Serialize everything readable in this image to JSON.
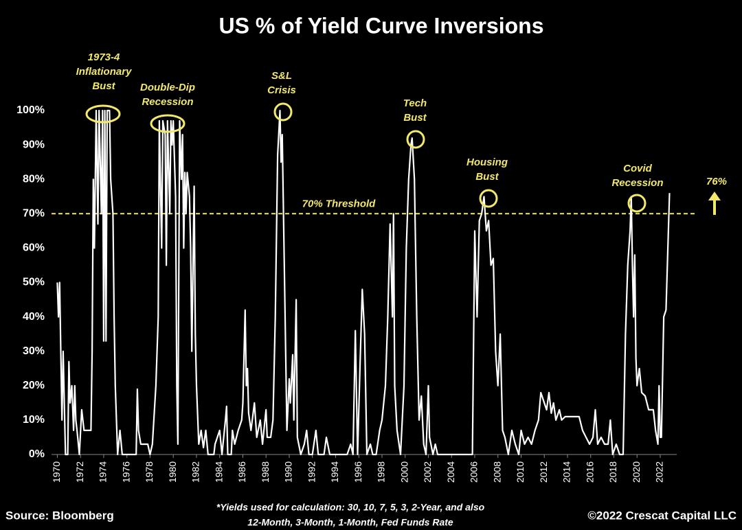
{
  "chart_data": {
    "type": "line",
    "title": "US % of Yield Curve Inversions",
    "color": "#ffffff",
    "x": [
      1970.0,
      1970.1,
      1970.2,
      1970.3,
      1970.4,
      1970.5,
      1970.7,
      1970.9,
      1971.0,
      1971.1,
      1971.25,
      1971.4,
      1971.5,
      1971.6,
      1971.7,
      1971.9,
      1972.1,
      1972.3,
      1972.6,
      1972.9,
      1973.0,
      1973.1,
      1973.2,
      1973.35,
      1973.5,
      1973.6,
      1973.8,
      1973.9,
      1974.0,
      1974.1,
      1974.2,
      1974.3,
      1974.5,
      1974.6,
      1974.8,
      1974.9,
      1975.0,
      1975.2,
      1975.4,
      1975.6,
      1976.8,
      1976.9,
      1977.0,
      1977.2,
      1977.5,
      1977.8,
      1978.0,
      1978.2,
      1978.5,
      1978.7,
      1978.8,
      1979.0,
      1979.1,
      1979.3,
      1979.4,
      1979.5,
      1979.7,
      1979.8,
      1979.9,
      1980.0,
      1980.2,
      1980.3,
      1980.4,
      1980.55,
      1980.7,
      1980.8,
      1980.9,
      1981.0,
      1981.1,
      1981.2,
      1981.4,
      1981.5,
      1981.6,
      1981.8,
      1981.9,
      1982.0,
      1982.2,
      1982.4,
      1982.6,
      1982.8,
      1983.0,
      1983.5,
      1983.6,
      1984.0,
      1984.2,
      1984.5,
      1984.6,
      1984.7,
      1985.0,
      1985.1,
      1985.3,
      1985.6,
      1985.9,
      1986.0,
      1986.2,
      1986.3,
      1986.4,
      1986.5,
      1986.7,
      1987.0,
      1987.2,
      1987.5,
      1987.7,
      1988.0,
      1988.1,
      1988.4,
      1988.6,
      1988.8,
      1989.0,
      1989.2,
      1989.3,
      1989.4,
      1989.6,
      1989.8,
      1990.0,
      1990.1,
      1990.3,
      1990.4,
      1990.6,
      1990.7,
      1991.0,
      1991.3,
      1991.5,
      1991.7,
      1992.0,
      1992.3,
      1992.5,
      1993.0,
      1993.2,
      1993.5,
      1994.0,
      1994.5,
      1995.0,
      1995.3,
      1995.5,
      1995.7,
      1995.9,
      1996.1,
      1996.3,
      1996.5,
      1996.7,
      1997.0,
      1997.2,
      1997.5,
      1997.8,
      1998.0,
      1998.3,
      1998.5,
      1998.7,
      1998.9,
      1999.0,
      1999.1,
      1999.3,
      1999.6,
      1999.9,
      2000.1,
      2000.3,
      2000.5,
      2000.6,
      2000.8,
      2001.0,
      2001.2,
      2001.4,
      2001.6,
      2001.8,
      2002.0,
      2002.1,
      2002.4,
      2002.6,
      2002.8,
      2003.5,
      2004.0,
      2005.0,
      2005.8,
      2006.0,
      2006.2,
      2006.4,
      2006.6,
      2006.8,
      2007.0,
      2007.2,
      2007.4,
      2007.6,
      2007.8,
      2008.0,
      2008.2,
      2008.4,
      2008.6,
      2008.9,
      2009.2,
      2009.5,
      2009.8,
      2010.0,
      2010.3,
      2010.6,
      2010.9,
      2011.2,
      2011.5,
      2011.7,
      2012.0,
      2012.2,
      2012.4,
      2012.6,
      2012.8,
      2013.0,
      2013.3,
      2013.5,
      2013.8,
      2014.5,
      2015.0,
      2015.3,
      2015.6,
      2015.9,
      2016.2,
      2016.4,
      2016.6,
      2016.9,
      2017.2,
      2017.5,
      2017.7,
      2017.9,
      2018.2,
      2018.5,
      2018.8,
      2019.0,
      2019.2,
      2019.4,
      2019.5,
      2019.6,
      2019.7,
      2019.8,
      2019.9,
      2020.0,
      2020.2,
      2020.4,
      2020.7,
      2021.0,
      2021.4,
      2021.6,
      2021.8,
      2021.9,
      2022.0,
      2022.1,
      2022.3,
      2022.5,
      2022.8
    ],
    "values": [
      50,
      40,
      50,
      30,
      10,
      30,
      0,
      0,
      27,
      15,
      20,
      7,
      20,
      10,
      7,
      0,
      13,
      7,
      7,
      7,
      30,
      80,
      60,
      100,
      67,
      100,
      70,
      100,
      33,
      100,
      33,
      100,
      100,
      80,
      70,
      40,
      20,
      0,
      7,
      0,
      0,
      19,
      7,
      3,
      3,
      3,
      0,
      3,
      20,
      40,
      97,
      60,
      97,
      93,
      55,
      97,
      70,
      97,
      90,
      97,
      75,
      20,
      3,
      97,
      80,
      93,
      60,
      82,
      70,
      82,
      75,
      60,
      30,
      78,
      35,
      20,
      3,
      7,
      2,
      7,
      0,
      0,
      3,
      7,
      0,
      10,
      14,
      0,
      0,
      7,
      3,
      7,
      10,
      15,
      42,
      20,
      25,
      12,
      7,
      15,
      5,
      10,
      3,
      13,
      5,
      5,
      10,
      40,
      87,
      100,
      85,
      93,
      50,
      7,
      22,
      15,
      29,
      10,
      45,
      5,
      0,
      3,
      7,
      0,
      0,
      7,
      0,
      0,
      5,
      0,
      0,
      0,
      0,
      3,
      0,
      36,
      0,
      25,
      48,
      35,
      0,
      3,
      0,
      0,
      7,
      10,
      20,
      40,
      67,
      40,
      70,
      20,
      7,
      0,
      20,
      60,
      80,
      90,
      92,
      80,
      40,
      10,
      17,
      3,
      0,
      20,
      5,
      0,
      3,
      0,
      0,
      0,
      0,
      0,
      65,
      40,
      68,
      70,
      75,
      65,
      68,
      55,
      57,
      30,
      20,
      35,
      7,
      5,
      0,
      7,
      3,
      0,
      7,
      3,
      5,
      3,
      7,
      10,
      18,
      15,
      13,
      18,
      12,
      15,
      10,
      13,
      10,
      11,
      11,
      11,
      7,
      5,
      3,
      5,
      13,
      3,
      5,
      3,
      3,
      10,
      0,
      3,
      0,
      0,
      35,
      55,
      65,
      75,
      55,
      40,
      58,
      28,
      20,
      25,
      18,
      17,
      13,
      13,
      7,
      3,
      20,
      5,
      5,
      40,
      42,
      76
    ],
    "last_value_label": "76%",
    "xlim": [
      1969.5,
      2025.2
    ],
    "ylim": [
      0,
      100
    ],
    "xticks": [
      1970,
      1972,
      1974,
      1976,
      1978,
      1980,
      1982,
      1984,
      1986,
      1988,
      1990,
      1992,
      1994,
      1996,
      1998,
      2000,
      2002,
      2004,
      2006,
      2008,
      2010,
      2012,
      2014,
      2016,
      2018,
      2020,
      2022
    ],
    "yticks": [
      {
        "value": 0,
        "label": "0%"
      },
      {
        "value": 10,
        "label": "10%"
      },
      {
        "value": 20,
        "label": "20%"
      },
      {
        "value": 30,
        "label": "30%"
      },
      {
        "value": 40,
        "label": "40%"
      },
      {
        "value": 50,
        "label": "50%"
      },
      {
        "value": 60,
        "label": "60%"
      },
      {
        "value": 70,
        "label": "70%"
      },
      {
        "value": 80,
        "label": "80%"
      },
      {
        "value": 90,
        "label": "90%"
      },
      {
        "value": 100,
        "label": "100%"
      }
    ],
    "threshold": {
      "value": 70,
      "label": "70% Threshold",
      "color": "#f2e86b"
    },
    "annotations": [
      {
        "lines": [
          "1973-4",
          "Inflationary",
          "Bust"
        ]
      },
      {
        "lines": [
          "Double-Dip",
          "Recession"
        ]
      },
      {
        "lines": [
          "S&L",
          "Crisis"
        ]
      },
      {
        "lines": [
          "Tech",
          "Bust"
        ]
      },
      {
        "lines": [
          "Housing",
          "Bust"
        ]
      },
      {
        "lines": [
          "Covid",
          "Recession"
        ]
      }
    ],
    "source": "Source: Bloomberg",
    "note": [
      "*Yields used for calculation: 30, 10, 7, 5, 3, 2-Year, and also",
      "12-Month, 3-Month, 1-Month, Fed Funds Rate"
    ],
    "copyright": "©2022 Crescat Capital LLC"
  }
}
